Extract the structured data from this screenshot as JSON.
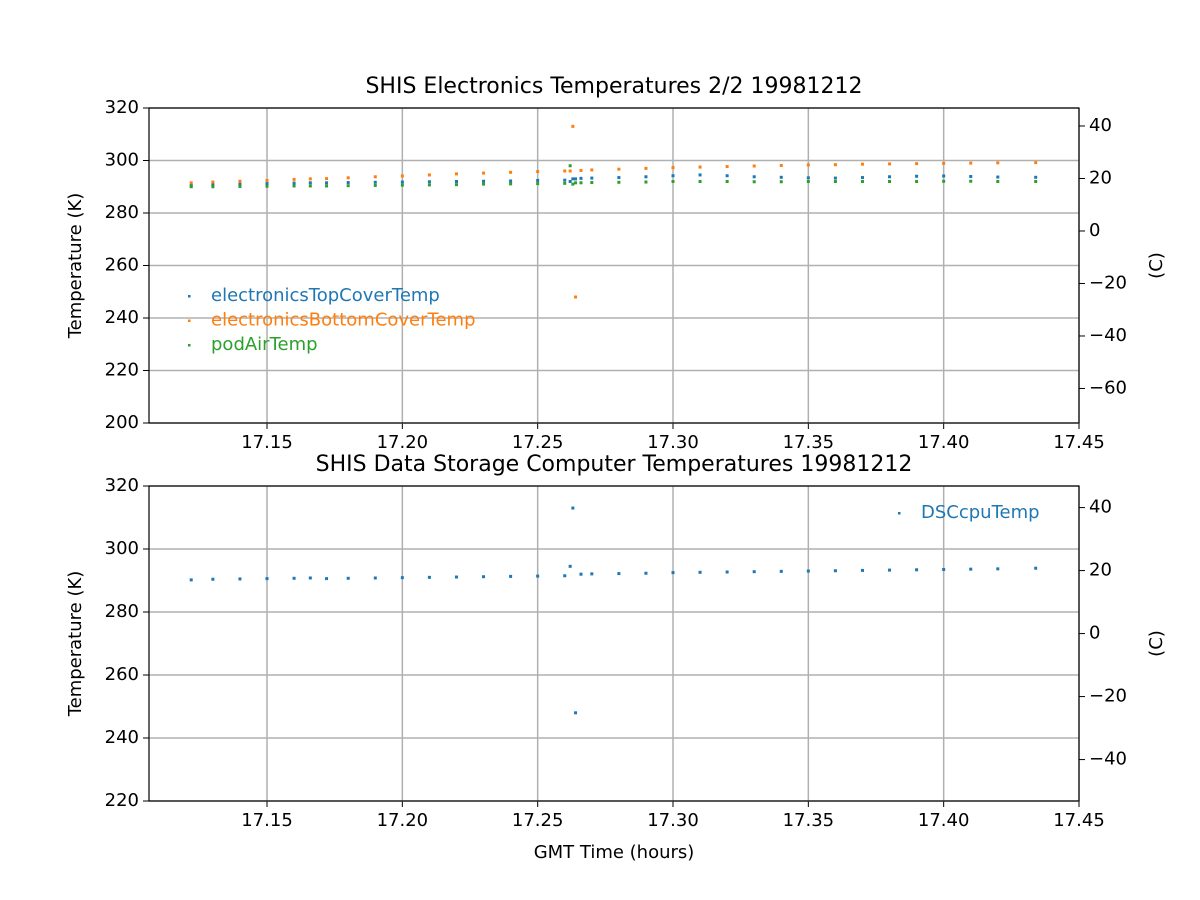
{
  "chart_data": [
    {
      "type": "scatter",
      "title": "SHIS Electronics Temperatures 2/2 19981212",
      "ylabel": "Temperature (K)",
      "y2label": "(C)",
      "x": [
        17.122,
        17.13,
        17.14,
        17.15,
        17.16,
        17.166,
        17.172,
        17.18,
        17.19,
        17.2,
        17.21,
        17.22,
        17.23,
        17.24,
        17.25,
        17.26,
        17.262,
        17.263,
        17.264,
        17.266,
        17.27,
        17.28,
        17.29,
        17.3,
        17.31,
        17.32,
        17.33,
        17.34,
        17.35,
        17.36,
        17.37,
        17.38,
        17.39,
        17.4,
        17.41,
        17.42,
        17.434
      ],
      "series": [
        {
          "name": "electronicsTopCoverTemp",
          "color": "#1f77b4",
          "values": [
            290.5,
            290.8,
            291,
            291.2,
            291.4,
            291.5,
            291.5,
            291.6,
            291.7,
            291.8,
            291.9,
            292,
            292.1,
            292.2,
            292.4,
            292.5,
            292,
            293,
            293,
            293.2,
            293.3,
            293.5,
            293.8,
            294.2,
            294.5,
            294.2,
            293.8,
            293.6,
            293.4,
            293.3,
            293.5,
            293.8,
            294,
            294.1,
            293.9,
            293.7,
            293.6
          ]
        },
        {
          "name": "electronicsBottomCoverTemp",
          "color": "#ff7f0e",
          "values": [
            291.5,
            291.8,
            292.1,
            292.4,
            292.8,
            293,
            293.1,
            293.4,
            293.8,
            294.1,
            294.5,
            294.9,
            295.2,
            295.5,
            295.8,
            296,
            296,
            313,
            248,
            296.2,
            296.4,
            296.7,
            297,
            297.3,
            297.5,
            297.7,
            297.9,
            298.1,
            298.3,
            298.4,
            298.6,
            298.7,
            298.8,
            298.9,
            299,
            299.1,
            299.2
          ]
        },
        {
          "name": "podAirTemp",
          "color": "#2ca02c",
          "values": [
            290,
            290,
            290.1,
            290.2,
            290.3,
            290.3,
            290.3,
            290.4,
            290.5,
            290.6,
            290.7,
            290.8,
            291,
            291.1,
            291.2,
            291.3,
            298,
            291,
            291.5,
            291.5,
            291.6,
            291.7,
            291.8,
            292,
            292,
            292,
            291.9,
            291.9,
            292,
            292,
            292,
            292,
            292,
            292.1,
            292.1,
            292,
            292
          ]
        }
      ],
      "xlim": [
        17.1064,
        17.45
      ],
      "xticks": [
        17.15,
        {
          "value": 17.2,
          "label": "17.20"
        },
        17.25,
        {
          "value": 17.3,
          "label": "17.30"
        },
        17.35,
        {
          "value": 17.4,
          "label": "17.40"
        },
        17.45
      ],
      "ylim": [
        200,
        320
      ],
      "yticks": [
        200,
        220,
        240,
        260,
        280,
        300,
        320
      ],
      "y2lim": [
        -73.15,
        46.85
      ],
      "y2ticks": [
        {
          "value": -60,
          "label": "−60"
        },
        {
          "value": -40,
          "label": "−40"
        },
        {
          "value": -20,
          "label": "−20"
        },
        0,
        20,
        40
      ],
      "grid": true,
      "legend": "lower left"
    },
    {
      "type": "scatter",
      "title": "SHIS Data Storage Computer Temperatures 19981212",
      "xlabel": "GMT Time (hours)",
      "ylabel": "Temperature (K)",
      "y2label": "(C)",
      "x": [
        17.122,
        17.13,
        17.14,
        17.15,
        17.16,
        17.166,
        17.172,
        17.18,
        17.19,
        17.2,
        17.21,
        17.22,
        17.23,
        17.24,
        17.25,
        17.26,
        17.262,
        17.263,
        17.264,
        17.266,
        17.27,
        17.28,
        17.29,
        17.3,
        17.31,
        17.32,
        17.33,
        17.34,
        17.35,
        17.36,
        17.37,
        17.38,
        17.39,
        17.4,
        17.41,
        17.42,
        17.434
      ],
      "series": [
        {
          "name": "DSCcpuTemp",
          "color": "#1f77b4",
          "values": [
            290.2,
            290.4,
            290.5,
            290.6,
            290.7,
            290.8,
            290.6,
            290.7,
            290.8,
            290.9,
            291,
            291.1,
            291.2,
            291.3,
            291.4,
            291.5,
            294.5,
            313,
            248,
            292,
            292.1,
            292.2,
            292.3,
            292.5,
            292.6,
            292.7,
            292.8,
            292.9,
            293,
            293.1,
            293.2,
            293.3,
            293.4,
            293.5,
            293.6,
            293.7,
            293.9
          ]
        }
      ],
      "xlim": [
        17.1064,
        17.45
      ],
      "xticks": [
        17.15,
        {
          "value": 17.2,
          "label": "17.20"
        },
        17.25,
        {
          "value": 17.3,
          "label": "17.30"
        },
        17.35,
        {
          "value": 17.4,
          "label": "17.40"
        },
        17.45
      ],
      "ylim": [
        220,
        320
      ],
      "yticks": [
        220,
        240,
        260,
        280,
        300,
        320
      ],
      "y2lim": [
        -53.15,
        46.85
      ],
      "y2ticks": [
        {
          "value": -40,
          "label": "−40"
        },
        {
          "value": -20,
          "label": "−20"
        },
        0,
        20,
        40
      ],
      "grid": true,
      "legend": "upper right"
    }
  ]
}
